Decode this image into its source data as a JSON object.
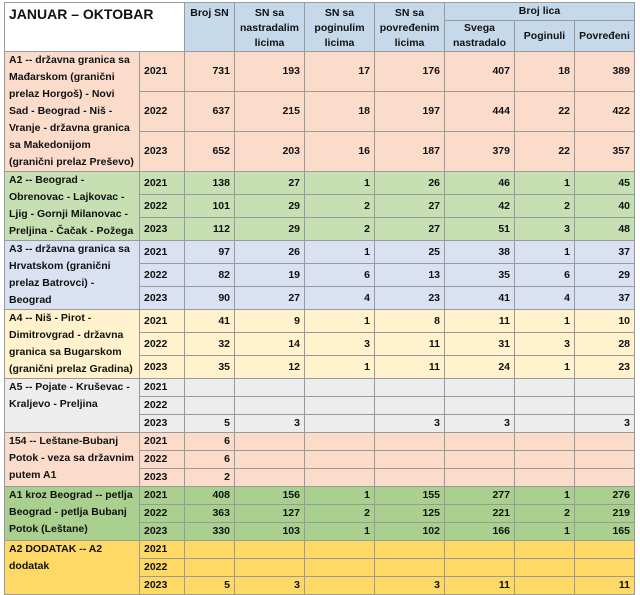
{
  "header": {
    "title": "JANUAR – OKTOBAR",
    "columns": [
      "Broj SN",
      "SN sa nastradalim licima",
      "SN sa poginulim licima",
      "SN sa povređenim licima"
    ],
    "group_header": "Broj lica",
    "sub_columns": [
      "Svega nastradalo",
      "Poginuli",
      "Povređeni"
    ]
  },
  "table": {
    "groups": [
      {
        "name": "A1 -- državna granica sa Mađarskom (granični prelaz Horgoš) - Novi Sad - Beograd - Niš - Vranje - državna granica sa Makedonijom (granični prelaz Preševo)",
        "color": "#fbdccb",
        "rows": [
          {
            "year": "2021",
            "values": [
              731,
              193,
              17,
              176,
              407,
              18,
              389
            ]
          },
          {
            "year": "2022",
            "values": [
              637,
              215,
              18,
              197,
              444,
              22,
              422
            ]
          },
          {
            "year": "2023",
            "values": [
              652,
              203,
              16,
              187,
              379,
              22,
              357
            ]
          }
        ]
      },
      {
        "name": "A2 -- Beograd - Obrenovac - Lajkovac - Ljig - Gornji Milanovac - Preljina - Čačak - Požega",
        "color": "#c6e0b4",
        "rows": [
          {
            "year": "2021",
            "values": [
              138,
              27,
              1,
              26,
              46,
              1,
              45
            ]
          },
          {
            "year": "2022",
            "values": [
              101,
              29,
              2,
              27,
              42,
              2,
              40
            ]
          },
          {
            "year": "2023",
            "values": [
              112,
              29,
              2,
              27,
              51,
              3,
              48
            ]
          }
        ]
      },
      {
        "name": "A3 -- državna granica sa Hrvatskom (granični prelaz Batrovci) - Beograd",
        "color": "#d9e1f2",
        "rows": [
          {
            "year": "2021",
            "values": [
              97,
              26,
              1,
              25,
              38,
              1,
              37
            ]
          },
          {
            "year": "2022",
            "values": [
              82,
              19,
              6,
              13,
              35,
              6,
              29
            ]
          },
          {
            "year": "2023",
            "values": [
              90,
              27,
              4,
              23,
              41,
              4,
              37
            ]
          }
        ]
      },
      {
        "name": "A4 -- Niš - Pirot - Dimitrovgrad - državna granica sa Bugarskom (granični prelaz Gradina)",
        "color": "#fff2cc",
        "rows": [
          {
            "year": "2021",
            "values": [
              41,
              9,
              1,
              8,
              11,
              1,
              10
            ]
          },
          {
            "year": "2022",
            "values": [
              32,
              14,
              3,
              11,
              31,
              3,
              28
            ]
          },
          {
            "year": "2023",
            "values": [
              35,
              12,
              1,
              11,
              24,
              1,
              23
            ]
          }
        ]
      },
      {
        "name": "A5 -- Pojate - Kruševac - Kraljevo - Preljina",
        "color": "#ededed",
        "rows": [
          {
            "year": "2021",
            "values": [
              null,
              null,
              null,
              null,
              null,
              null,
              null
            ]
          },
          {
            "year": "2022",
            "values": [
              null,
              null,
              null,
              null,
              null,
              null,
              null
            ]
          },
          {
            "year": "2023",
            "values": [
              5,
              3,
              null,
              3,
              3,
              null,
              3
            ]
          }
        ]
      },
      {
        "name": "154 -- Leštane-Bubanj Potok - veza sa državnim putem A1",
        "color": "#fbdccb",
        "rows": [
          {
            "year": "2021",
            "values": [
              6,
              null,
              null,
              null,
              null,
              null,
              null
            ]
          },
          {
            "year": "2022",
            "values": [
              6,
              null,
              null,
              null,
              null,
              null,
              null
            ]
          },
          {
            "year": "2023",
            "values": [
              2,
              null,
              null,
              null,
              null,
              null,
              null
            ]
          }
        ]
      },
      {
        "name": "A1 kroz Beograd -- petlja Beograd - petlja Bubanj Potok (Leštane)",
        "color": "#a9d08e",
        "rows": [
          {
            "year": "2021",
            "values": [
              408,
              156,
              1,
              155,
              277,
              1,
              276
            ]
          },
          {
            "year": "2022",
            "values": [
              363,
              127,
              2,
              125,
              221,
              2,
              219
            ]
          },
          {
            "year": "2023",
            "values": [
              330,
              103,
              1,
              102,
              166,
              1,
              165
            ]
          }
        ]
      },
      {
        "name": "A2 DODATAK -- A2 dodatak",
        "color": "#ffd966",
        "rows": [
          {
            "year": "2021",
            "values": [
              null,
              null,
              null,
              null,
              null,
              null,
              null
            ]
          },
          {
            "year": "2022",
            "values": [
              null,
              null,
              null,
              null,
              null,
              null,
              null
            ]
          },
          {
            "year": "2023",
            "values": [
              5,
              3,
              null,
              3,
              11,
              null,
              11
            ]
          }
        ]
      }
    ]
  }
}
